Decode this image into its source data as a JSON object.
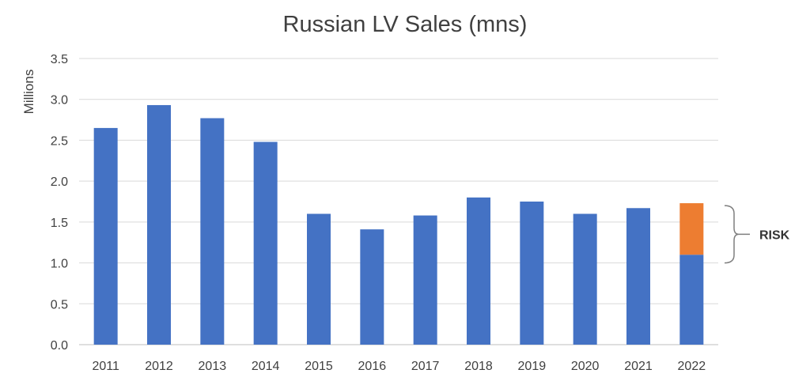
{
  "chart_data": {
    "type": "bar",
    "title": "Russian LV Sales (mns)",
    "xlabel": "",
    "ylabel": "Millions",
    "categories": [
      "2011",
      "2012",
      "2013",
      "2014",
      "2015",
      "2016",
      "2017",
      "2018",
      "2019",
      "2020",
      "2021",
      "2022"
    ],
    "series": [
      {
        "values": [
          2.65,
          2.93,
          2.77,
          2.48,
          1.6,
          1.41,
          1.58,
          1.8,
          1.75,
          1.6,
          1.67,
          1.1
        ]
      },
      {
        "values": [
          0,
          0,
          0,
          0,
          0,
          0,
          0,
          0,
          0,
          0,
          0,
          0.63
        ]
      }
    ],
    "stacked": true,
    "ylim": [
      0,
      3.5
    ],
    "yticks": [
      "0.0",
      "0.5",
      "1.0",
      "1.5",
      "2.0",
      "2.5",
      "3.0",
      "3.5"
    ],
    "grid": true,
    "colors": {
      "base": "#4472C4",
      "risk": "#ED7D31",
      "grid": "#D9D9D9",
      "axis": "#BFBFBF",
      "text": "#404040"
    },
    "annotation": {
      "label": "RISK",
      "range": [
        1.0,
        1.7
      ]
    }
  }
}
